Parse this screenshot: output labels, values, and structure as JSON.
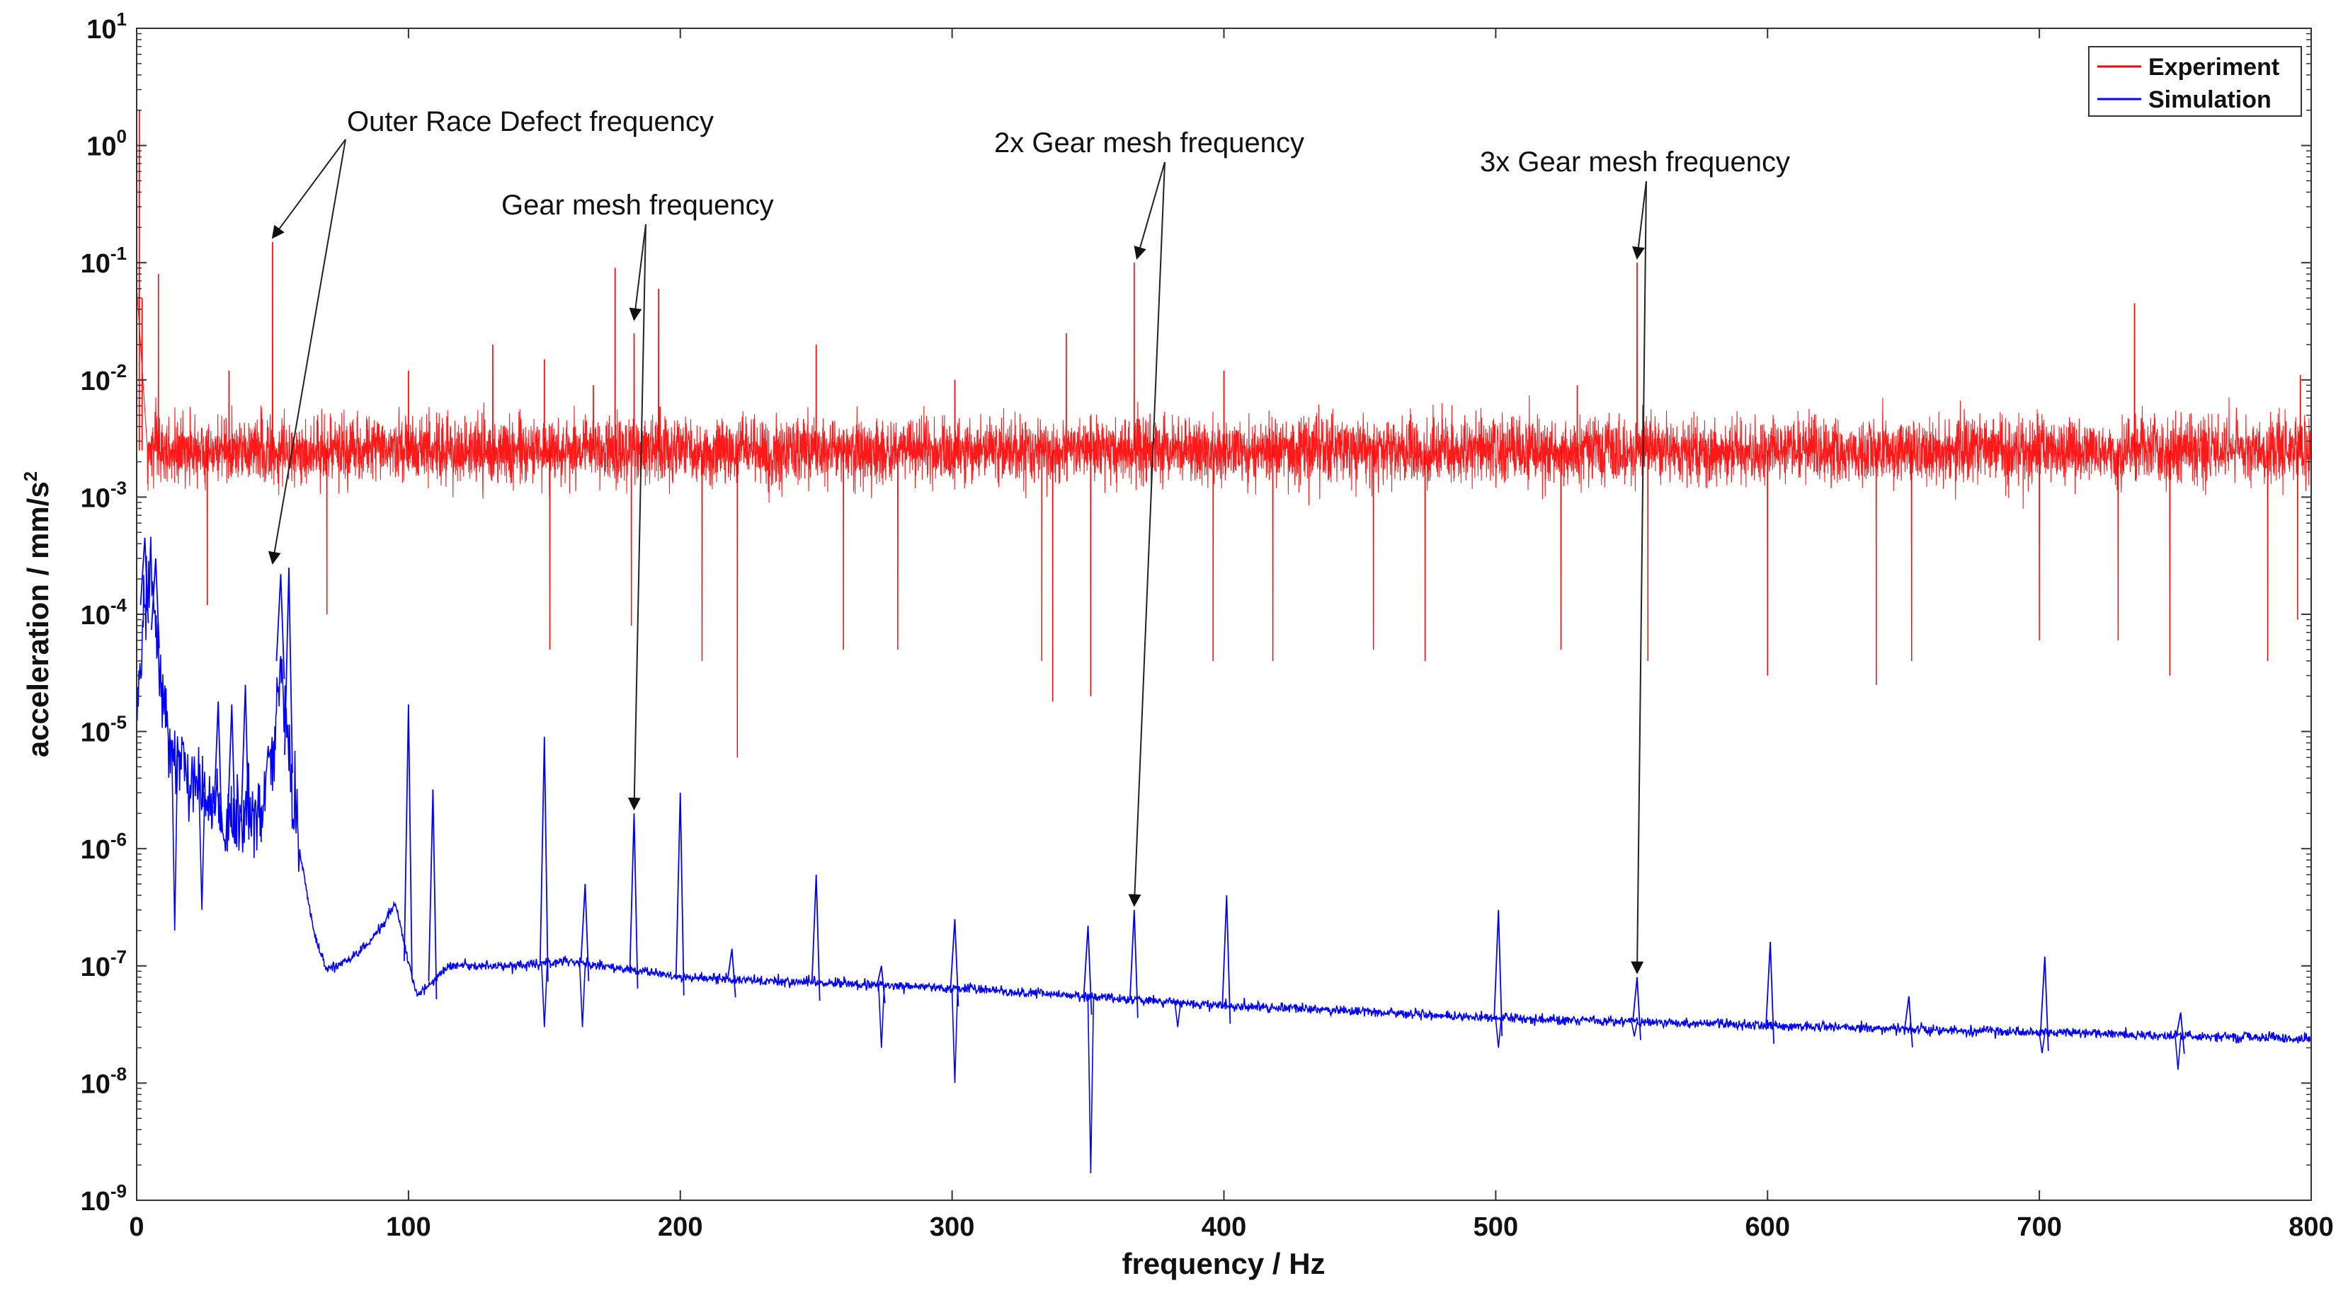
{
  "chart_data": {
    "type": "line",
    "title": "",
    "xlabel": "frequency / Hz",
    "ylabel_main": "acceleration / mm/s",
    "ylabel_sup": "2",
    "yscale": "log",
    "xlim": [
      0,
      800
    ],
    "ylim_exp": [
      -9,
      1
    ],
    "x_ticks": [
      0,
      100,
      200,
      300,
      400,
      500,
      600,
      700,
      800
    ],
    "y_tick_exponents": [
      1,
      0,
      -1,
      -2,
      -3,
      -4,
      -5,
      -6,
      -7,
      -8,
      -9
    ],
    "y_tick_base": "10",
    "grid": false,
    "legend_position": "top-right",
    "series": [
      {
        "name": "Experiment",
        "color": "#ff0000",
        "noise_floor_band": [
          0.0008,
          0.006
        ],
        "noise_floor_median": 0.0025,
        "peaks": [
          {
            "x": 1,
            "y": 2.0
          },
          {
            "x": 2,
            "y": 0.05
          },
          {
            "x": 8,
            "y": 0.08
          },
          {
            "x": 34,
            "y": 0.012
          },
          {
            "x": 50,
            "y": 0.15
          },
          {
            "x": 100,
            "y": 0.012
          },
          {
            "x": 131,
            "y": 0.02
          },
          {
            "x": 150,
            "y": 0.015
          },
          {
            "x": 168,
            "y": 0.009
          },
          {
            "x": 176,
            "y": 0.09
          },
          {
            "x": 183,
            "y": 0.025
          },
          {
            "x": 192,
            "y": 0.06
          },
          {
            "x": 250,
            "y": 0.02
          },
          {
            "x": 301,
            "y": 0.01
          },
          {
            "x": 342,
            "y": 0.025
          },
          {
            "x": 367,
            "y": 0.1
          },
          {
            "x": 400,
            "y": 0.012
          },
          {
            "x": 530,
            "y": 0.009
          },
          {
            "x": 552,
            "y": 0.1
          },
          {
            "x": 735,
            "y": 0.045
          },
          {
            "x": 796,
            "y": 0.011
          }
        ],
        "dips": [
          {
            "x": 26,
            "y": 0.00012
          },
          {
            "x": 70,
            "y": 0.0001
          },
          {
            "x": 152,
            "y": 5e-05
          },
          {
            "x": 182,
            "y": 8e-05
          },
          {
            "x": 208,
            "y": 4e-05
          },
          {
            "x": 221,
            "y": 6e-06
          },
          {
            "x": 260,
            "y": 5e-05
          },
          {
            "x": 280,
            "y": 5e-05
          },
          {
            "x": 333,
            "y": 4e-05
          },
          {
            "x": 337,
            "y": 1.8e-05
          },
          {
            "x": 351,
            "y": 2e-05
          },
          {
            "x": 396,
            "y": 4e-05
          },
          {
            "x": 418,
            "y": 4e-05
          },
          {
            "x": 455,
            "y": 5e-05
          },
          {
            "x": 474,
            "y": 4e-05
          },
          {
            "x": 524,
            "y": 5e-05
          },
          {
            "x": 556,
            "y": 4e-05
          },
          {
            "x": 600,
            "y": 3e-05
          },
          {
            "x": 640,
            "y": 2.5e-05
          },
          {
            "x": 653,
            "y": 4e-05
          },
          {
            "x": 700,
            "y": 6e-05
          },
          {
            "x": 729,
            "y": 6e-05
          },
          {
            "x": 748,
            "y": 3e-05
          },
          {
            "x": 784,
            "y": 4e-05
          },
          {
            "x": 795,
            "y": 9e-05
          }
        ]
      },
      {
        "name": "Simulation",
        "color": "#0000ff",
        "baseline": [
          {
            "x": 0,
            "y": 1e-05
          },
          {
            "x": 3,
            "y": 0.00012
          },
          {
            "x": 5,
            "y": 0.00025
          },
          {
            "x": 8,
            "y": 4e-05
          },
          {
            "x": 12,
            "y": 8e-06
          },
          {
            "x": 20,
            "y": 4e-06
          },
          {
            "x": 30,
            "y": 2e-06
          },
          {
            "x": 36,
            "y": 1.5e-06
          },
          {
            "x": 45,
            "y": 2e-06
          },
          {
            "x": 50,
            "y": 6e-06
          },
          {
            "x": 53,
            "y": 4e-05
          },
          {
            "x": 55,
            "y": 1e-05
          },
          {
            "x": 60,
            "y": 1e-06
          },
          {
            "x": 65,
            "y": 2e-07
          },
          {
            "x": 70,
            "y": 9e-08
          },
          {
            "x": 80,
            "y": 1.2e-07
          },
          {
            "x": 88,
            "y": 1.8e-07
          },
          {
            "x": 95,
            "y": 3.5e-07
          },
          {
            "x": 103,
            "y": 5.5e-08
          },
          {
            "x": 115,
            "y": 1e-07
          },
          {
            "x": 140,
            "y": 1e-07
          },
          {
            "x": 160,
            "y": 1.1e-07
          },
          {
            "x": 200,
            "y": 8e-08
          },
          {
            "x": 300,
            "y": 6.5e-08
          },
          {
            "x": 400,
            "y": 4.6e-08
          },
          {
            "x": 500,
            "y": 3.6e-08
          },
          {
            "x": 600,
            "y": 3.1e-08
          },
          {
            "x": 700,
            "y": 2.7e-08
          },
          {
            "x": 800,
            "y": 2.4e-08
          }
        ],
        "peaks": [
          {
            "x": 3,
            "y": 0.00045
          },
          {
            "x": 7,
            "y": 0.0003
          },
          {
            "x": 30,
            "y": 1.8e-05
          },
          {
            "x": 35,
            "y": 1.7e-05
          },
          {
            "x": 40,
            "y": 2.5e-05
          },
          {
            "x": 53,
            "y": 0.00022
          },
          {
            "x": 56,
            "y": 0.00025
          },
          {
            "x": 100,
            "y": 1.7e-05
          },
          {
            "x": 109,
            "y": 3.2e-06
          },
          {
            "x": 150,
            "y": 9e-06
          },
          {
            "x": 165,
            "y": 5e-07
          },
          {
            "x": 183,
            "y": 2e-06
          },
          {
            "x": 200,
            "y": 3e-06
          },
          {
            "x": 219,
            "y": 1.4e-07
          },
          {
            "x": 250,
            "y": 6e-07
          },
          {
            "x": 274,
            "y": 1e-07
          },
          {
            "x": 301,
            "y": 2.5e-07
          },
          {
            "x": 350,
            "y": 2.2e-07
          },
          {
            "x": 367,
            "y": 3e-07
          },
          {
            "x": 401,
            "y": 4e-07
          },
          {
            "x": 501,
            "y": 3e-07
          },
          {
            "x": 552,
            "y": 8e-08
          },
          {
            "x": 601,
            "y": 1.6e-07
          },
          {
            "x": 652,
            "y": 5.5e-08
          },
          {
            "x": 702,
            "y": 1.2e-07
          },
          {
            "x": 752,
            "y": 4e-08
          }
        ],
        "dips": [
          {
            "x": 14,
            "y": 2e-07
          },
          {
            "x": 24,
            "y": 3e-07
          },
          {
            "x": 150,
            "y": 3e-08
          },
          {
            "x": 164,
            "y": 3e-08
          },
          {
            "x": 274,
            "y": 2e-08
          },
          {
            "x": 301,
            "y": 1e-08
          },
          {
            "x": 351,
            "y": 1.7e-09
          },
          {
            "x": 383,
            "y": 3e-08
          },
          {
            "x": 501,
            "y": 2e-08
          },
          {
            "x": 551,
            "y": 2.5e-08
          },
          {
            "x": 701,
            "y": 1.8e-08
          },
          {
            "x": 751,
            "y": 1.3e-08
          }
        ]
      }
    ],
    "annotations": [
      {
        "text": "Outer Race Defect frequency",
        "arrows_to": [
          {
            "x": 50,
            "y": 0.15
          },
          {
            "x": 50,
            "y": 0.00025
          }
        ]
      },
      {
        "text": "Gear mesh frequency",
        "arrows_to": [
          {
            "x": 183,
            "y": 0.03
          },
          {
            "x": 183,
            "y": 2e-06
          }
        ]
      },
      {
        "text": "2x Gear mesh frequency",
        "arrows_to": [
          {
            "x": 368,
            "y": 0.1
          },
          {
            "x": 367,
            "y": 3e-07
          }
        ]
      },
      {
        "text": "3x Gear mesh frequency",
        "arrows_to": [
          {
            "x": 552,
            "y": 0.1
          },
          {
            "x": 552,
            "y": 8e-08
          }
        ]
      }
    ]
  }
}
